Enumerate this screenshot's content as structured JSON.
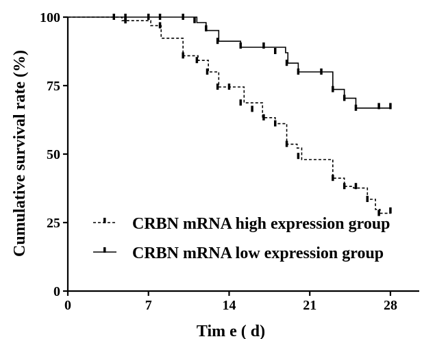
{
  "chart_data": {
    "type": "line",
    "subtype": "kaplan-meier step",
    "xlabel": "Tim e ( d)",
    "ylabel": "Cumulative survival rate (%)",
    "xlim": [
      0,
      30.5
    ],
    "ylim": [
      0,
      100
    ],
    "x_ticks": [
      0,
      7,
      14,
      21,
      28
    ],
    "y_ticks": [
      0,
      25,
      50,
      75,
      100
    ],
    "grid": false,
    "legend_position": "bottom-right",
    "series": [
      {
        "name": "CRBN mRNA high expression group",
        "line_style": "dashed",
        "color": "#000000",
        "steps": [
          [
            0,
            100
          ],
          [
            4.7,
            98.7
          ],
          [
            7.2,
            96.9
          ],
          [
            8.1,
            92.3
          ],
          [
            10.0,
            85.9
          ],
          [
            11.3,
            84.2
          ],
          [
            12.2,
            80.0
          ],
          [
            13.1,
            74.5
          ],
          [
            15.3,
            68.7
          ],
          [
            16.9,
            63.3
          ],
          [
            18.0,
            61.1
          ],
          [
            19.0,
            53.6
          ],
          [
            19.9,
            52.2
          ],
          [
            20.3,
            48.0
          ],
          [
            23.0,
            41.2
          ],
          [
            24.0,
            38.2
          ],
          [
            24.8,
            37.6
          ],
          [
            26.0,
            33.5
          ],
          [
            26.7,
            29.8
          ],
          [
            27.1,
            28.4
          ],
          [
            28.0,
            28.4
          ]
        ],
        "censored": [
          [
            5.0,
            98.7
          ],
          [
            8.0,
            96.9
          ],
          [
            10.0,
            85.9
          ],
          [
            11.2,
            84.2
          ],
          [
            12.1,
            80.0
          ],
          [
            13.0,
            74.5
          ],
          [
            14.0,
            74.5
          ],
          [
            15.0,
            68.7
          ],
          [
            16.0,
            66.4
          ],
          [
            17.0,
            63.3
          ],
          [
            18.0,
            61.1
          ],
          [
            19.0,
            53.6
          ],
          [
            20.0,
            49.2
          ],
          [
            23.0,
            41.2
          ],
          [
            24.0,
            38.2
          ],
          [
            25.0,
            38.2
          ],
          [
            26.0,
            33.5
          ],
          [
            27.0,
            28.4
          ],
          [
            28.0,
            29.3
          ]
        ]
      },
      {
        "name": "CRBN mRNA low expression group",
        "line_style": "solid",
        "color": "#000000",
        "steps": [
          [
            0,
            100
          ],
          [
            11.2,
            98.0
          ],
          [
            12.0,
            95.1
          ],
          [
            13.1,
            91.2
          ],
          [
            15.0,
            89.0
          ],
          [
            18.9,
            87.0
          ],
          [
            19.1,
            83.2
          ],
          [
            20.0,
            80.0
          ],
          [
            23.0,
            73.6
          ],
          [
            24.0,
            70.4
          ],
          [
            25.0,
            66.8
          ],
          [
            28.0,
            66.8
          ]
        ],
        "censored": [
          [
            4.0,
            100
          ],
          [
            5.0,
            100
          ],
          [
            7.0,
            100
          ],
          [
            8.0,
            100
          ],
          [
            10.0,
            100
          ],
          [
            11.0,
            98.8
          ],
          [
            12.0,
            95.8
          ],
          [
            13.0,
            91.2
          ],
          [
            15.0,
            89.5
          ],
          [
            17.0,
            89.5
          ],
          [
            18.0,
            87.5
          ],
          [
            19.0,
            83.2
          ],
          [
            20.0,
            80.0
          ],
          [
            22.0,
            80.0
          ],
          [
            23.0,
            73.6
          ],
          [
            24.0,
            70.4
          ],
          [
            25.0,
            66.8
          ],
          [
            27.0,
            67.4
          ],
          [
            28.0,
            67.4
          ]
        ]
      }
    ]
  }
}
